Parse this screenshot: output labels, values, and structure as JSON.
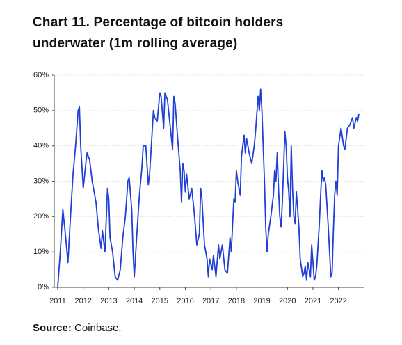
{
  "chart_data": {
    "type": "line",
    "title": "Chart 11. Percentage of bitcoin holders underwater (1m rolling average)",
    "source_label": "Source:",
    "source": "Coinbase.",
    "x": [
      2011.0,
      2011.1,
      2011.2,
      2011.3,
      2011.4,
      2011.5,
      2011.6,
      2011.7,
      2011.8,
      2011.85,
      2011.9,
      2012.0,
      2012.1,
      2012.15,
      2012.25,
      2012.35,
      2012.5,
      2012.6,
      2012.7,
      2012.75,
      2012.85,
      2012.95,
      2013.0,
      2013.05,
      2013.15,
      2013.25,
      2013.35,
      2013.45,
      2013.55,
      2013.65,
      2013.75,
      2013.8,
      2013.9,
      2013.95,
      2014.0,
      2014.1,
      2014.2,
      2014.3,
      2014.35,
      2014.45,
      2014.55,
      2014.6,
      2014.7,
      2014.75,
      2014.8,
      2014.9,
      2015.0,
      2015.05,
      2015.15,
      2015.2,
      2015.3,
      2015.4,
      2015.5,
      2015.55,
      2015.6,
      2015.7,
      2015.8,
      2015.85,
      2015.9,
      2015.95,
      2016.0,
      2016.05,
      2016.15,
      2016.25,
      2016.35,
      2016.45,
      2016.55,
      2016.6,
      2016.65,
      2016.75,
      2016.85,
      2016.9,
      2016.95,
      2017.05,
      2017.1,
      2017.2,
      2017.3,
      2017.35,
      2017.45,
      2017.55,
      2017.65,
      2017.75,
      2017.8,
      2017.9,
      2017.95,
      2018.0,
      2018.05,
      2018.15,
      2018.2,
      2018.3,
      2018.35,
      2018.4,
      2018.5,
      2018.6,
      2018.7,
      2018.75,
      2018.85,
      2018.9,
      2018.95,
      2019.0,
      2019.05,
      2019.1,
      2019.15,
      2019.2,
      2019.25,
      2019.35,
      2019.45,
      2019.5,
      2019.55,
      2019.6,
      2019.65,
      2019.7,
      2019.75,
      2019.8,
      2019.9,
      2019.95,
      2020.0,
      2020.05,
      2020.1,
      2020.15,
      2020.2,
      2020.25,
      2020.3,
      2020.35,
      2020.45,
      2020.5,
      2020.6,
      2020.65,
      2020.7,
      2020.75,
      2020.8,
      2020.9,
      2020.95,
      2021.05,
      2021.1,
      2021.15,
      2021.25,
      2021.3,
      2021.35,
      2021.4,
      2021.45,
      2021.5,
      2021.55,
      2021.6,
      2021.65,
      2021.7,
      2021.75,
      2021.8,
      2021.85,
      2021.9,
      2021.95,
      2022.0,
      2022.1,
      2022.2,
      2022.25,
      2022.35,
      2022.45,
      2022.55,
      2022.6,
      2022.7,
      2022.75,
      2022.8
    ],
    "series": [
      {
        "color": "#1f3fd6",
        "values": [
          0,
          10,
          22,
          15,
          7,
          20,
          32,
          40,
          50,
          51,
          40,
          28,
          35,
          38,
          36,
          30,
          24,
          16,
          11,
          16,
          10,
          28,
          25,
          14,
          10,
          3,
          2,
          5,
          14,
          20,
          30,
          31,
          22,
          10,
          3,
          15,
          26,
          34,
          40,
          40,
          29,
          32,
          44,
          50,
          48,
          47,
          55,
          54,
          45,
          55,
          53,
          46,
          39,
          54,
          52,
          42,
          33,
          24,
          35,
          33,
          27,
          32,
          25,
          28,
          21,
          12,
          15,
          28,
          25,
          12,
          8,
          3,
          8,
          5,
          9,
          3,
          12,
          8,
          12,
          5,
          4,
          14,
          10,
          25,
          24,
          33,
          30,
          26,
          37,
          43,
          38,
          42,
          38,
          35,
          40,
          44,
          54,
          50,
          56,
          50,
          40,
          30,
          17,
          10,
          15,
          20,
          26,
          33,
          30,
          38,
          28,
          20,
          17,
          24,
          44,
          40,
          31,
          27,
          20,
          40,
          28,
          20,
          18,
          27,
          17,
          8,
          3,
          4,
          6,
          2,
          7,
          3,
          12,
          2,
          3,
          6,
          18,
          26,
          33,
          30,
          31,
          29,
          23,
          17,
          10,
          3,
          4,
          16,
          26,
          30,
          26,
          40,
          45,
          40,
          39,
          45,
          46,
          48,
          45,
          48,
          47,
          49
        ]
      }
    ],
    "xlim": [
      2011,
      2022.99
    ],
    "xticks": [
      2011,
      2012,
      2013,
      2014,
      2015,
      2016,
      2017,
      2018,
      2019,
      2020,
      2021,
      2022
    ],
    "ylim": [
      0,
      60
    ],
    "yticks": [
      {
        "value": 0,
        "label": "0%"
      },
      {
        "value": 10,
        "label": "10%"
      },
      {
        "value": 20,
        "label": "20%"
      },
      {
        "value": 30,
        "label": "30%"
      },
      {
        "value": 40,
        "label": "40%"
      },
      {
        "value": 50,
        "label": "50%"
      },
      {
        "value": 60,
        "label": "60%"
      }
    ],
    "grid": true
  }
}
